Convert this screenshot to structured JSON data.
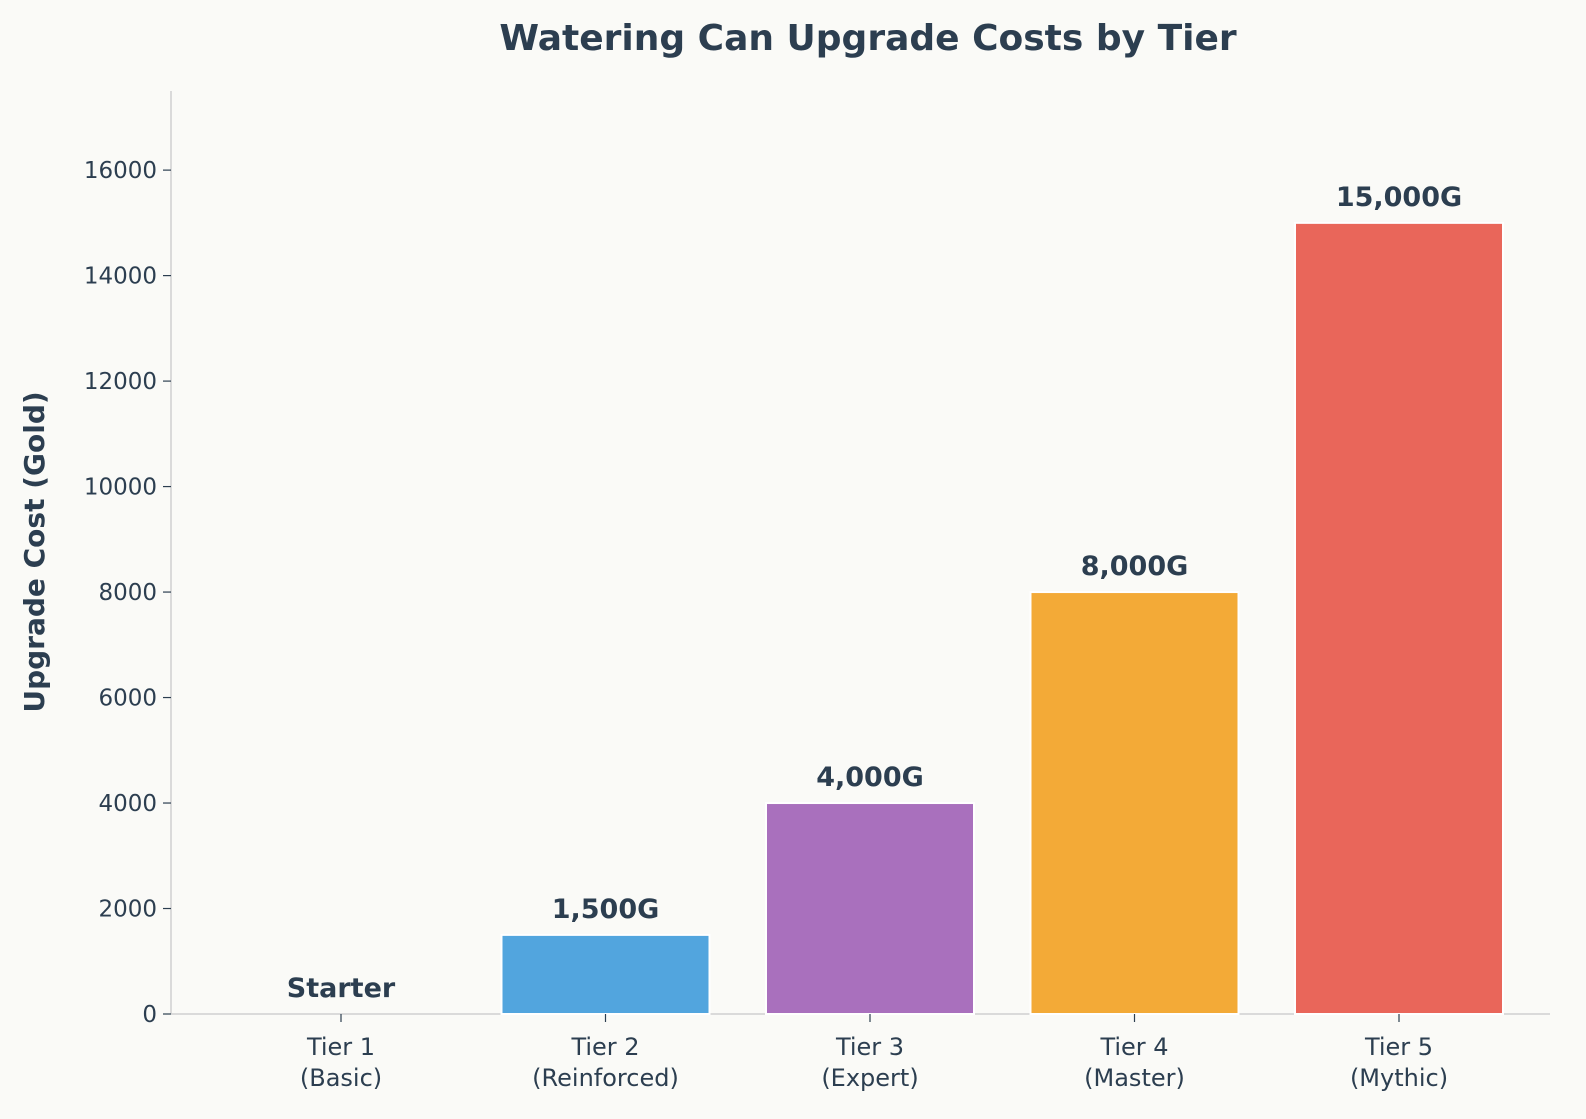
{
  "chart_data": {
    "type": "bar",
    "title": "Watering Can Upgrade Costs by Tier",
    "xlabel": "",
    "ylabel": "Upgrade Cost (Gold)",
    "ylim": [
      0,
      17500
    ],
    "yticks": [
      0,
      2000,
      4000,
      6000,
      8000,
      10000,
      12000,
      14000,
      16000
    ],
    "grid": false,
    "categories": [
      [
        "Tier 1",
        "(Basic)"
      ],
      [
        "Tier 2",
        "(Reinforced)"
      ],
      [
        "Tier 3",
        "(Expert)"
      ],
      [
        "Tier 4",
        "(Master)"
      ],
      [
        "Tier 5",
        "(Mythic)"
      ]
    ],
    "values": [
      0,
      1500,
      4000,
      8000,
      15000
    ],
    "data_labels": [
      "Starter",
      "1,500G",
      "4,000G",
      "8,000G",
      "15,000G"
    ],
    "colors": [
      "#52a5de",
      "#52a5de",
      "#a970bd",
      "#f3aa37",
      "#e9665a"
    ],
    "text_color": "#2c3e50",
    "axis_color": "#d0d0d0",
    "background": "#fafaf7"
  }
}
